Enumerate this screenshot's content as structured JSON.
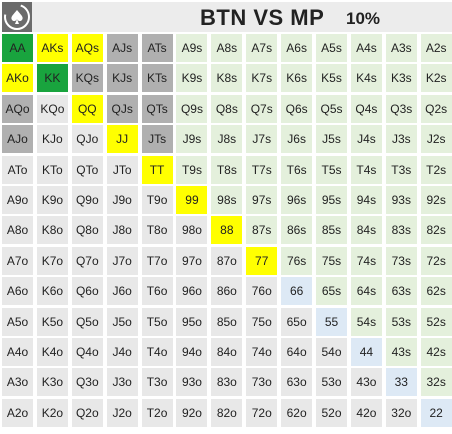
{
  "header": {
    "title": "BTN VS MP",
    "percent": "10%"
  },
  "colors": {
    "green": "#19a43e",
    "yellow": "#ffff00",
    "gray": "#b0b0b0",
    "fold_suited": "#e4f0dc",
    "fold_offsuit": "#e8e8e8",
    "fold_pair": "#dde9f5"
  },
  "grid": {
    "rows": [
      [
        {
          "h": "AA",
          "c": "green"
        },
        {
          "h": "AKs",
          "c": "yellow"
        },
        {
          "h": "AQs",
          "c": "yellow"
        },
        {
          "h": "AJs",
          "c": "gray"
        },
        {
          "h": "ATs",
          "c": "gray"
        },
        {
          "h": "A9s",
          "c": "fold_suited"
        },
        {
          "h": "A8s",
          "c": "fold_suited"
        },
        {
          "h": "A7s",
          "c": "fold_suited"
        },
        {
          "h": "A6s",
          "c": "fold_suited"
        },
        {
          "h": "A5s",
          "c": "fold_suited"
        },
        {
          "h": "A4s",
          "c": "fold_suited"
        },
        {
          "h": "A3s",
          "c": "fold_suited"
        },
        {
          "h": "A2s",
          "c": "fold_suited"
        }
      ],
      [
        {
          "h": "AKo",
          "c": "yellow"
        },
        {
          "h": "KK",
          "c": "green"
        },
        {
          "h": "KQs",
          "c": "gray"
        },
        {
          "h": "KJs",
          "c": "gray"
        },
        {
          "h": "KTs",
          "c": "gray"
        },
        {
          "h": "K9s",
          "c": "fold_suited"
        },
        {
          "h": "K8s",
          "c": "fold_suited"
        },
        {
          "h": "K7s",
          "c": "fold_suited"
        },
        {
          "h": "K6s",
          "c": "fold_suited"
        },
        {
          "h": "K5s",
          "c": "fold_suited"
        },
        {
          "h": "K4s",
          "c": "fold_suited"
        },
        {
          "h": "K3s",
          "c": "fold_suited"
        },
        {
          "h": "K2s",
          "c": "fold_suited"
        }
      ],
      [
        {
          "h": "AQo",
          "c": "gray"
        },
        {
          "h": "KQo",
          "c": "fold_offsuit"
        },
        {
          "h": "QQ",
          "c": "yellow"
        },
        {
          "h": "QJs",
          "c": "gray"
        },
        {
          "h": "QTs",
          "c": "gray"
        },
        {
          "h": "Q9s",
          "c": "fold_suited"
        },
        {
          "h": "Q8s",
          "c": "fold_suited"
        },
        {
          "h": "Q7s",
          "c": "fold_suited"
        },
        {
          "h": "Q6s",
          "c": "fold_suited"
        },
        {
          "h": "Q5s",
          "c": "fold_suited"
        },
        {
          "h": "Q4s",
          "c": "fold_suited"
        },
        {
          "h": "Q3s",
          "c": "fold_suited"
        },
        {
          "h": "Q2s",
          "c": "fold_suited"
        }
      ],
      [
        {
          "h": "AJo",
          "c": "gray"
        },
        {
          "h": "KJo",
          "c": "fold_offsuit"
        },
        {
          "h": "QJo",
          "c": "fold_offsuit"
        },
        {
          "h": "JJ",
          "c": "yellow"
        },
        {
          "h": "JTs",
          "c": "gray"
        },
        {
          "h": "J9s",
          "c": "fold_suited"
        },
        {
          "h": "J8s",
          "c": "fold_suited"
        },
        {
          "h": "J7s",
          "c": "fold_suited"
        },
        {
          "h": "J6s",
          "c": "fold_suited"
        },
        {
          "h": "J5s",
          "c": "fold_suited"
        },
        {
          "h": "J4s",
          "c": "fold_suited"
        },
        {
          "h": "J3s",
          "c": "fold_suited"
        },
        {
          "h": "J2s",
          "c": "fold_suited"
        }
      ],
      [
        {
          "h": "ATo",
          "c": "fold_offsuit"
        },
        {
          "h": "KTo",
          "c": "fold_offsuit"
        },
        {
          "h": "QTo",
          "c": "fold_offsuit"
        },
        {
          "h": "JTo",
          "c": "fold_offsuit"
        },
        {
          "h": "TT",
          "c": "yellow"
        },
        {
          "h": "T9s",
          "c": "fold_suited"
        },
        {
          "h": "T8s",
          "c": "fold_suited"
        },
        {
          "h": "T7s",
          "c": "fold_suited"
        },
        {
          "h": "T6s",
          "c": "fold_suited"
        },
        {
          "h": "T5s",
          "c": "fold_suited"
        },
        {
          "h": "T4s",
          "c": "fold_suited"
        },
        {
          "h": "T3s",
          "c": "fold_suited"
        },
        {
          "h": "T2s",
          "c": "fold_suited"
        }
      ],
      [
        {
          "h": "A9o",
          "c": "fold_offsuit"
        },
        {
          "h": "K9o",
          "c": "fold_offsuit"
        },
        {
          "h": "Q9o",
          "c": "fold_offsuit"
        },
        {
          "h": "J9o",
          "c": "fold_offsuit"
        },
        {
          "h": "T9o",
          "c": "fold_offsuit"
        },
        {
          "h": "99",
          "c": "yellow"
        },
        {
          "h": "98s",
          "c": "fold_suited"
        },
        {
          "h": "97s",
          "c": "fold_suited"
        },
        {
          "h": "96s",
          "c": "fold_suited"
        },
        {
          "h": "95s",
          "c": "fold_suited"
        },
        {
          "h": "94s",
          "c": "fold_suited"
        },
        {
          "h": "93s",
          "c": "fold_suited"
        },
        {
          "h": "92s",
          "c": "fold_suited"
        }
      ],
      [
        {
          "h": "A8o",
          "c": "fold_offsuit"
        },
        {
          "h": "K8o",
          "c": "fold_offsuit"
        },
        {
          "h": "Q8o",
          "c": "fold_offsuit"
        },
        {
          "h": "J8o",
          "c": "fold_offsuit"
        },
        {
          "h": "T8o",
          "c": "fold_offsuit"
        },
        {
          "h": "98o",
          "c": "fold_offsuit"
        },
        {
          "h": "88",
          "c": "yellow"
        },
        {
          "h": "87s",
          "c": "fold_suited"
        },
        {
          "h": "86s",
          "c": "fold_suited"
        },
        {
          "h": "85s",
          "c": "fold_suited"
        },
        {
          "h": "84s",
          "c": "fold_suited"
        },
        {
          "h": "83s",
          "c": "fold_suited"
        },
        {
          "h": "82s",
          "c": "fold_suited"
        }
      ],
      [
        {
          "h": "A7o",
          "c": "fold_offsuit"
        },
        {
          "h": "K7o",
          "c": "fold_offsuit"
        },
        {
          "h": "Q7o",
          "c": "fold_offsuit"
        },
        {
          "h": "J7o",
          "c": "fold_offsuit"
        },
        {
          "h": "T7o",
          "c": "fold_offsuit"
        },
        {
          "h": "97o",
          "c": "fold_offsuit"
        },
        {
          "h": "87o",
          "c": "fold_offsuit"
        },
        {
          "h": "77",
          "c": "yellow"
        },
        {
          "h": "76s",
          "c": "fold_suited"
        },
        {
          "h": "75s",
          "c": "fold_suited"
        },
        {
          "h": "74s",
          "c": "fold_suited"
        },
        {
          "h": "73s",
          "c": "fold_suited"
        },
        {
          "h": "72s",
          "c": "fold_suited"
        }
      ],
      [
        {
          "h": "A6o",
          "c": "fold_offsuit"
        },
        {
          "h": "K6o",
          "c": "fold_offsuit"
        },
        {
          "h": "Q6o",
          "c": "fold_offsuit"
        },
        {
          "h": "J6o",
          "c": "fold_offsuit"
        },
        {
          "h": "T6o",
          "c": "fold_offsuit"
        },
        {
          "h": "96o",
          "c": "fold_offsuit"
        },
        {
          "h": "86o",
          "c": "fold_offsuit"
        },
        {
          "h": "76o",
          "c": "fold_offsuit"
        },
        {
          "h": "66",
          "c": "fold_pair"
        },
        {
          "h": "65s",
          "c": "fold_suited"
        },
        {
          "h": "64s",
          "c": "fold_suited"
        },
        {
          "h": "63s",
          "c": "fold_suited"
        },
        {
          "h": "62s",
          "c": "fold_suited"
        }
      ],
      [
        {
          "h": "A5o",
          "c": "fold_offsuit"
        },
        {
          "h": "K5o",
          "c": "fold_offsuit"
        },
        {
          "h": "Q5o",
          "c": "fold_offsuit"
        },
        {
          "h": "J5o",
          "c": "fold_offsuit"
        },
        {
          "h": "T5o",
          "c": "fold_offsuit"
        },
        {
          "h": "95o",
          "c": "fold_offsuit"
        },
        {
          "h": "85o",
          "c": "fold_offsuit"
        },
        {
          "h": "75o",
          "c": "fold_offsuit"
        },
        {
          "h": "65o",
          "c": "fold_offsuit"
        },
        {
          "h": "55",
          "c": "fold_pair"
        },
        {
          "h": "54s",
          "c": "fold_suited"
        },
        {
          "h": "53s",
          "c": "fold_suited"
        },
        {
          "h": "52s",
          "c": "fold_suited"
        }
      ],
      [
        {
          "h": "A4o",
          "c": "fold_offsuit"
        },
        {
          "h": "K4o",
          "c": "fold_offsuit"
        },
        {
          "h": "Q4o",
          "c": "fold_offsuit"
        },
        {
          "h": "J4o",
          "c": "fold_offsuit"
        },
        {
          "h": "T4o",
          "c": "fold_offsuit"
        },
        {
          "h": "94o",
          "c": "fold_offsuit"
        },
        {
          "h": "84o",
          "c": "fold_offsuit"
        },
        {
          "h": "74o",
          "c": "fold_offsuit"
        },
        {
          "h": "64o",
          "c": "fold_offsuit"
        },
        {
          "h": "54o",
          "c": "fold_offsuit"
        },
        {
          "h": "44",
          "c": "fold_pair"
        },
        {
          "h": "43s",
          "c": "fold_suited"
        },
        {
          "h": "42s",
          "c": "fold_suited"
        }
      ],
      [
        {
          "h": "A3o",
          "c": "fold_offsuit"
        },
        {
          "h": "K3o",
          "c": "fold_offsuit"
        },
        {
          "h": "Q3o",
          "c": "fold_offsuit"
        },
        {
          "h": "J3o",
          "c": "fold_offsuit"
        },
        {
          "h": "T3o",
          "c": "fold_offsuit"
        },
        {
          "h": "93o",
          "c": "fold_offsuit"
        },
        {
          "h": "83o",
          "c": "fold_offsuit"
        },
        {
          "h": "73o",
          "c": "fold_offsuit"
        },
        {
          "h": "63o",
          "c": "fold_offsuit"
        },
        {
          "h": "53o",
          "c": "fold_offsuit"
        },
        {
          "h": "43o",
          "c": "fold_offsuit"
        },
        {
          "h": "33",
          "c": "fold_pair"
        },
        {
          "h": "32s",
          "c": "fold_suited"
        }
      ],
      [
        {
          "h": "A2o",
          "c": "fold_offsuit"
        },
        {
          "h": "K2o",
          "c": "fold_offsuit"
        },
        {
          "h": "Q2o",
          "c": "fold_offsuit"
        },
        {
          "h": "J2o",
          "c": "fold_offsuit"
        },
        {
          "h": "T2o",
          "c": "fold_offsuit"
        },
        {
          "h": "92o",
          "c": "fold_offsuit"
        },
        {
          "h": "82o",
          "c": "fold_offsuit"
        },
        {
          "h": "72o",
          "c": "fold_offsuit"
        },
        {
          "h": "62o",
          "c": "fold_offsuit"
        },
        {
          "h": "52o",
          "c": "fold_offsuit"
        },
        {
          "h": "42o",
          "c": "fold_offsuit"
        },
        {
          "h": "32o",
          "c": "fold_offsuit"
        },
        {
          "h": "22",
          "c": "fold_pair"
        }
      ]
    ]
  }
}
